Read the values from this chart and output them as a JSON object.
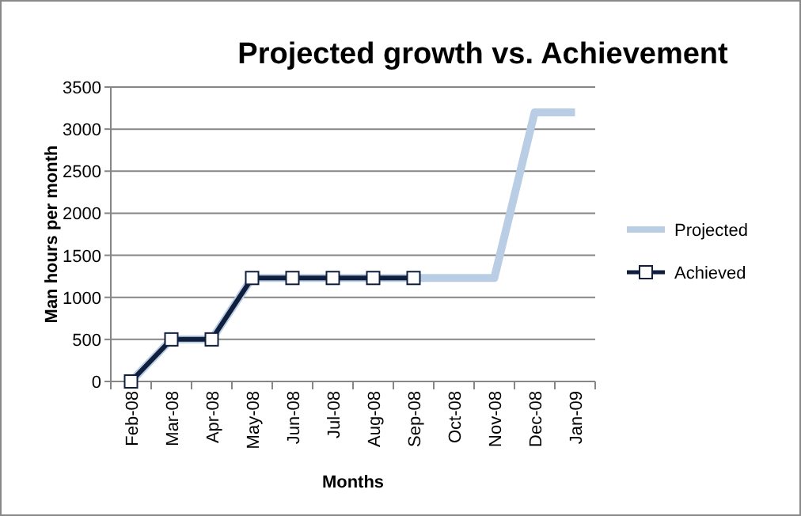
{
  "chart_data": {
    "type": "line",
    "title": "Projected growth vs. Achievement",
    "xlabel": "Months",
    "ylabel": "Man hours per month",
    "categories": [
      "Feb-08",
      "Mar-08",
      "Apr-08",
      "May-08",
      "Jun-08",
      "Jul-08",
      "Aug-08",
      "Sep-08",
      "Oct-08",
      "Nov-08",
      "Dec-08",
      "Jan-09"
    ],
    "series": [
      {
        "name": "Projected",
        "color": "#b9cde5",
        "values": [
          0,
          500,
          500,
          1230,
          1230,
          1230,
          1230,
          1230,
          1230,
          1230,
          3200,
          3200
        ],
        "marker": "none"
      },
      {
        "name": "Achieved",
        "color": "#0f1f3d",
        "values": [
          0,
          500,
          500,
          1230,
          1230,
          1230,
          1230,
          1230,
          null,
          null,
          null,
          null
        ],
        "marker": "square"
      }
    ],
    "ylim": [
      0,
      3500
    ],
    "yticks": [
      0,
      500,
      1000,
      1500,
      2000,
      2500,
      3000,
      3500
    ],
    "grid": "y",
    "legend": "right"
  }
}
